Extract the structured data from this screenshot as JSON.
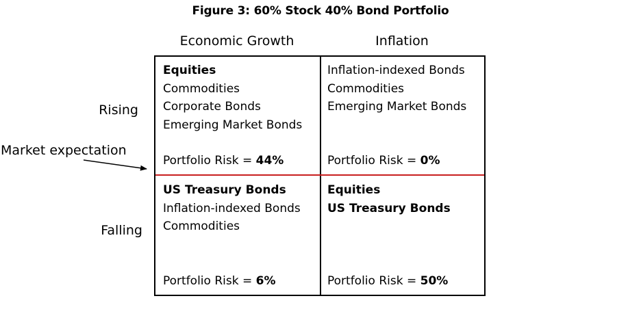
{
  "title": "Figure 3: 60% Stock 40% Bond Portfolio",
  "columns": [
    "Economic Growth",
    "Inflation"
  ],
  "rows": [
    "Rising",
    "Falling"
  ],
  "market_expectation_label": "Market expectation",
  "colors": {
    "divider": "#c81e1e",
    "border": "#000000"
  },
  "cells": {
    "growth_rising": {
      "items": [
        {
          "text": "Equities",
          "bold": true
        },
        {
          "text": "Commodities",
          "bold": false
        },
        {
          "text": "Corporate Bonds",
          "bold": false
        },
        {
          "text": "Emerging Market Bonds",
          "bold": false
        }
      ],
      "risk_label": "Portfolio Risk = ",
      "risk_value": "44%"
    },
    "inflation_rising": {
      "items": [
        {
          "text": "Inflation-indexed Bonds",
          "bold": false
        },
        {
          "text": "Commodities",
          "bold": false
        },
        {
          "text": "Emerging Market Bonds",
          "bold": false
        }
      ],
      "risk_label": "Portfolio Risk = ",
      "risk_value": "0%"
    },
    "growth_falling": {
      "items": [
        {
          "text": "US Treasury Bonds",
          "bold": true
        },
        {
          "text": "Inflation-indexed Bonds",
          "bold": false
        },
        {
          "text": "Commodities",
          "bold": false
        }
      ],
      "risk_label": "Portfolio Risk = ",
      "risk_value": "6%"
    },
    "inflation_falling": {
      "items": [
        {
          "text": "Equities",
          "bold": true
        },
        {
          "text": "US Treasury Bonds",
          "bold": true
        }
      ],
      "risk_label": "Portfolio Risk = ",
      "risk_value": "50%"
    }
  }
}
